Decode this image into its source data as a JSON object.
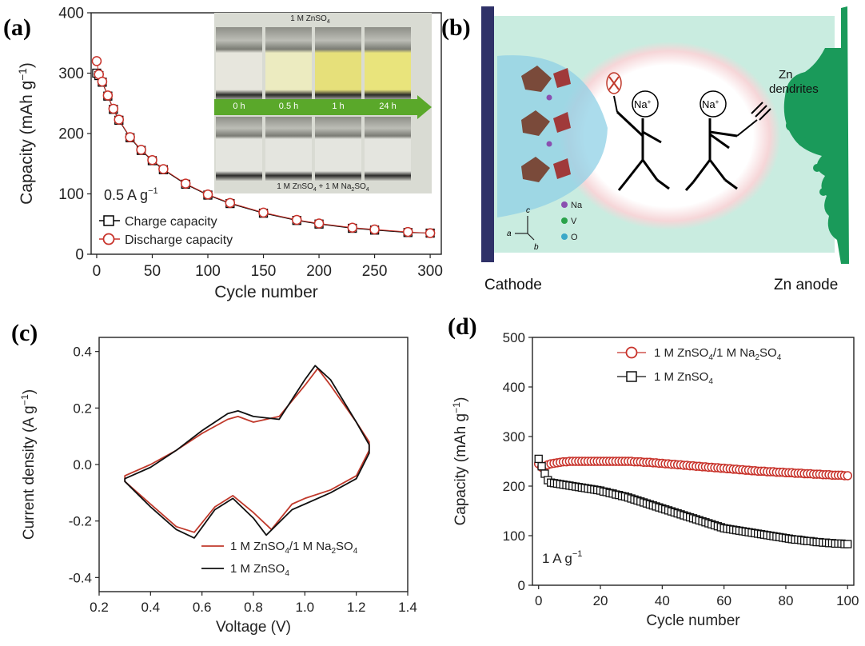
{
  "panels": {
    "a": "(a)",
    "b": "(b)",
    "c": "(c)",
    "d": "(d)"
  },
  "inset_a": {
    "top_label_main": "1 M ZnSO",
    "top_label_sub": "4",
    "times": [
      "0 h",
      "0.5 h",
      "1 h",
      "24 h"
    ],
    "bottom_label": [
      "1 M ZnSO",
      "4",
      " + 1 M Na",
      "2",
      "SO",
      "4"
    ]
  },
  "schematic_b": {
    "cathode_label": "Cathode",
    "anode_label": "Zn anode",
    "dendrite_label_1": "Zn",
    "dendrite_label_2": "dendrites",
    "ion_label": "Na",
    "ion_charge": "+",
    "legend": [
      "Na",
      "V",
      "O"
    ],
    "axes": {
      "c": "c",
      "a": "a",
      "b": "b"
    },
    "colors": {
      "electrolyte": "#c9ece0",
      "cathode": "#2f3168",
      "anode": "#1a9a5a",
      "na": "#8a4fb0",
      "v": "#2aa24a",
      "o": "#3aa8c8"
    }
  },
  "chart_data": [
    {
      "panel": "a",
      "type": "scatter",
      "xlabel": "Cycle number",
      "ylabel": "Capacity (mAh g",
      "ylabel_sup": "−1",
      "ylabel_close": ")",
      "xlim": [
        -5,
        310
      ],
      "ylim": [
        0,
        400
      ],
      "xticks": [
        0,
        50,
        100,
        150,
        200,
        250,
        300
      ],
      "yticks": [
        0,
        100,
        200,
        300,
        400
      ],
      "annotation": "0.5 A g",
      "annotation_sup": "−1",
      "series": [
        {
          "name": "Charge capacity",
          "marker": "square",
          "color": "#000000",
          "x": [
            0,
            2,
            5,
            10,
            15,
            20,
            30,
            40,
            50,
            60,
            80,
            100,
            120,
            150,
            180,
            200,
            230,
            250,
            280,
            300
          ],
          "y": [
            300,
            296,
            285,
            262,
            240,
            222,
            193,
            172,
            155,
            140,
            116,
            98,
            84,
            68,
            56,
            50,
            43,
            40,
            36,
            35
          ]
        },
        {
          "name": "Discharge capacity",
          "marker": "circle",
          "color": "#c8322a",
          "x": [
            0,
            2,
            5,
            10,
            15,
            20,
            30,
            40,
            50,
            60,
            80,
            100,
            120,
            150,
            180,
            200,
            230,
            250,
            280,
            300
          ],
          "y": [
            320,
            298,
            286,
            263,
            241,
            223,
            194,
            173,
            156,
            141,
            117,
            99,
            85,
            69,
            57,
            51,
            44,
            41,
            37,
            35
          ]
        }
      ]
    },
    {
      "panel": "c",
      "type": "line",
      "xlabel": "Voltage (V)",
      "ylabel": "Current density (A g",
      "ylabel_sup": "−1",
      "ylabel_close": ")",
      "xlim": [
        0.2,
        1.4
      ],
      "ylim": [
        -0.45,
        0.45
      ],
      "xticks": [
        "0.2",
        "0.4",
        "0.6",
        "0.8",
        "1.0",
        "1.2",
        "1.4"
      ],
      "yticks": [
        "-0.4",
        "-0.2",
        "0.0",
        "0.2",
        "0.4"
      ],
      "series": [
        {
          "name": "1 M ZnSO4/1 M Na2SO4",
          "label_parts": [
            "1 M ZnSO",
            "4",
            "/1 M Na",
            "2",
            "SO",
            "4"
          ],
          "color": "#c0392b",
          "x": [
            0.3,
            0.4,
            0.5,
            0.6,
            0.7,
            0.74,
            0.8,
            0.9,
            1.0,
            1.05,
            1.1,
            1.2,
            1.25,
            1.25,
            1.2,
            1.1,
            1.0,
            0.95,
            0.87,
            0.8,
            0.72,
            0.65,
            0.57,
            0.5,
            0.4,
            0.3
          ],
          "y": [
            -0.04,
            0.0,
            0.05,
            0.11,
            0.16,
            0.17,
            0.15,
            0.17,
            0.28,
            0.34,
            0.28,
            0.15,
            0.08,
            0.05,
            -0.04,
            -0.09,
            -0.12,
            -0.14,
            -0.23,
            -0.17,
            -0.11,
            -0.15,
            -0.24,
            -0.22,
            -0.14,
            -0.06
          ]
        },
        {
          "name": "1 M ZnSO4",
          "label_parts": [
            "1 M ZnSO",
            "4"
          ],
          "color": "#111111",
          "x": [
            0.3,
            0.4,
            0.5,
            0.6,
            0.7,
            0.74,
            0.8,
            0.9,
            1.0,
            1.04,
            1.1,
            1.2,
            1.25,
            1.25,
            1.2,
            1.1,
            1.0,
            0.95,
            0.85,
            0.8,
            0.72,
            0.65,
            0.57,
            0.5,
            0.4,
            0.3
          ],
          "y": [
            -0.05,
            -0.01,
            0.05,
            0.12,
            0.18,
            0.19,
            0.17,
            0.16,
            0.3,
            0.35,
            0.3,
            0.15,
            0.07,
            0.04,
            -0.05,
            -0.1,
            -0.14,
            -0.16,
            -0.25,
            -0.19,
            -0.12,
            -0.16,
            -0.26,
            -0.23,
            -0.15,
            -0.06
          ]
        }
      ]
    },
    {
      "panel": "d",
      "type": "scatter",
      "xlabel": "Cycle number",
      "ylabel": "Capacity (mAh g",
      "ylabel_sup": "−1",
      "ylabel_close": ")",
      "xlim": [
        -2,
        102
      ],
      "ylim": [
        0,
        500
      ],
      "xticks": [
        0,
        20,
        40,
        60,
        80,
        100
      ],
      "yticks": [
        0,
        100,
        200,
        300,
        400,
        500
      ],
      "annotation": "1 A g",
      "annotation_sup": "−1",
      "series": [
        {
          "name": "1 M ZnSO4/1 M Na2SO4",
          "label_parts": [
            "1 M ZnSO",
            "4",
            "/1 M Na",
            "2",
            "SO",
            "4"
          ],
          "marker": "circle",
          "color": "#c8322a",
          "x": [
            0,
            1,
            2,
            3,
            4,
            5,
            6,
            7,
            8,
            9,
            10,
            11,
            12,
            13,
            14,
            15,
            16,
            17,
            18,
            19,
            20,
            21,
            22,
            23,
            24,
            25,
            26,
            27,
            28,
            29,
            30,
            31,
            32,
            33,
            34,
            35,
            36,
            37,
            38,
            39,
            40,
            41,
            42,
            43,
            44,
            45,
            46,
            47,
            48,
            49,
            50,
            51,
            52,
            53,
            54,
            55,
            56,
            57,
            58,
            59,
            60,
            61,
            62,
            63,
            64,
            65,
            66,
            67,
            68,
            69,
            70,
            71,
            72,
            73,
            74,
            75,
            76,
            77,
            78,
            79,
            80,
            81,
            82,
            83,
            84,
            85,
            86,
            87,
            88,
            89,
            90,
            91,
            92,
            93,
            94,
            95,
            96,
            97,
            98,
            99,
            100
          ],
          "y": [
            245,
            238,
            240,
            243,
            245,
            246,
            247,
            248,
            249,
            249,
            250,
            250,
            250,
            250,
            250,
            250,
            250,
            250,
            250,
            250,
            250,
            250,
            250,
            250,
            250,
            250,
            250,
            250,
            250,
            250,
            250,
            249,
            249,
            249,
            248,
            248,
            248,
            247,
            247,
            246,
            246,
            245,
            245,
            244,
            244,
            243,
            243,
            242,
            242,
            241,
            241,
            240,
            240,
            239,
            239,
            238,
            238,
            237,
            237,
            236,
            236,
            235,
            235,
            234,
            234,
            233,
            233,
            232,
            232,
            231,
            231,
            230,
            230,
            230,
            229,
            229,
            229,
            228,
            228,
            228,
            227,
            227,
            227,
            226,
            226,
            226,
            225,
            225,
            225,
            224,
            224,
            224,
            223,
            223,
            223,
            222,
            222,
            222,
            222,
            221,
            221
          ]
        },
        {
          "name": "1 M ZnSO4",
          "label_parts": [
            "1 M ZnSO",
            "4"
          ],
          "marker": "square",
          "color": "#111111",
          "x": [
            0,
            1,
            2,
            3,
            4,
            5,
            6,
            7,
            8,
            9,
            10,
            11,
            12,
            13,
            14,
            15,
            16,
            17,
            18,
            19,
            20,
            21,
            22,
            23,
            24,
            25,
            26,
            27,
            28,
            29,
            30,
            31,
            32,
            33,
            34,
            35,
            36,
            37,
            38,
            39,
            40,
            41,
            42,
            43,
            44,
            45,
            46,
            47,
            48,
            49,
            50,
            51,
            52,
            53,
            54,
            55,
            56,
            57,
            58,
            59,
            60,
            61,
            62,
            63,
            64,
            65,
            66,
            67,
            68,
            69,
            70,
            71,
            72,
            73,
            74,
            75,
            76,
            77,
            78,
            79,
            80,
            81,
            82,
            83,
            84,
            85,
            86,
            87,
            88,
            89,
            90,
            91,
            92,
            93,
            94,
            95,
            96,
            97,
            98,
            99,
            100
          ],
          "y": [
            255,
            240,
            225,
            212,
            207,
            206,
            205,
            204,
            203,
            202,
            201,
            200,
            199,
            198,
            197,
            196,
            195,
            194,
            193,
            192,
            191,
            189,
            188,
            186,
            185,
            183,
            182,
            180,
            179,
            177,
            175,
            173,
            171,
            169,
            167,
            165,
            163,
            161,
            159,
            157,
            155,
            153,
            151,
            149,
            147,
            145,
            143,
            141,
            139,
            137,
            135,
            133,
            131,
            129,
            127,
            125,
            123,
            121,
            119,
            117,
            115,
            114,
            113,
            112,
            111,
            110,
            109,
            108,
            107,
            106,
            105,
            104,
            103,
            102,
            101,
            100,
            99,
            98,
            97,
            96,
            95,
            94,
            93,
            92,
            92,
            91,
            90,
            89,
            89,
            88,
            87,
            87,
            86,
            86,
            85,
            85,
            84,
            84,
            84,
            83,
            83
          ]
        }
      ]
    }
  ]
}
